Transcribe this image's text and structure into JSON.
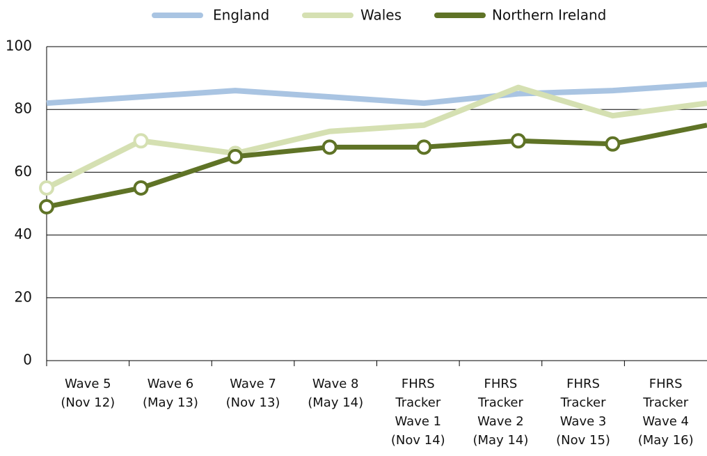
{
  "chart_data": {
    "type": "line",
    "categories": [
      "Wave 5 (Nov 12)",
      "Wave 6 (May 13)",
      "Wave 7 (Nov 13)",
      "Wave 8 (May 14)",
      "FHRS Tracker Wave 1 (Nov 14)",
      "FHRS Tracker Wave 2 (May 14)",
      "FHRS Tracker Wave 3 (Nov 15)",
      "FHRS Tracker Wave 4 (May 16)"
    ],
    "series": [
      {
        "name": "England",
        "color": "#a9c4e2",
        "values": [
          82,
          84,
          86,
          84,
          82,
          85,
          86,
          88
        ],
        "markers": [
          false,
          false,
          false,
          false,
          false,
          false,
          false,
          false
        ]
      },
      {
        "name": "Wales",
        "color": "#d5e0b2",
        "values": [
          55,
          70,
          66,
          73,
          75,
          87,
          78,
          82
        ],
        "markers": [
          true,
          true,
          true,
          false,
          false,
          false,
          false,
          false
        ]
      },
      {
        "name": "Northern Ireland",
        "color": "#5f7326",
        "values": [
          49,
          55,
          65,
          68,
          68,
          70,
          69,
          75
        ],
        "markers": [
          true,
          true,
          true,
          true,
          true,
          true,
          true,
          false
        ]
      }
    ],
    "ylim": [
      0,
      100
    ],
    "yticks": [
      0,
      20,
      40,
      60,
      80,
      100
    ],
    "grid": true,
    "legend": "top"
  }
}
